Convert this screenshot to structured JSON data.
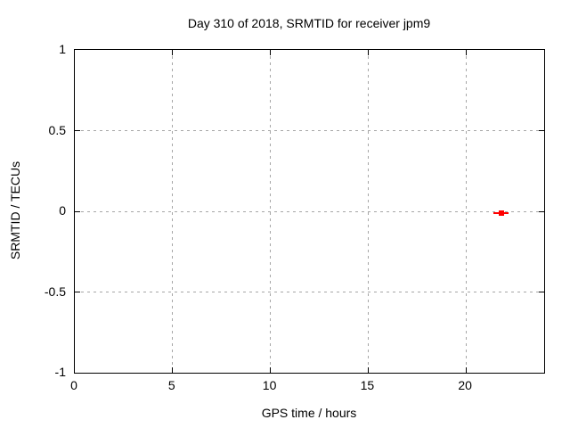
{
  "colors": {
    "background": "#ffffff",
    "border": "#000000",
    "grid": "#a6a6a6",
    "text": "#000000",
    "point": "#ff0000"
  },
  "chart_data": {
    "type": "scatter",
    "title": "Day 310 of 2018, SRMTID for receiver jpm9",
    "xlabel": "GPS time / hours",
    "ylabel": "SRMTID / TECUs",
    "xlim": [
      0,
      24
    ],
    "ylim": [
      -1,
      1
    ],
    "xticks": [
      {
        "value": 0,
        "label": "0"
      },
      {
        "value": 5,
        "label": "5"
      },
      {
        "value": 10,
        "label": "10"
      },
      {
        "value": 15,
        "label": "15"
      },
      {
        "value": 20,
        "label": "20"
      }
    ],
    "yticks": [
      {
        "value": -1,
        "label": "-1"
      },
      {
        "value": -0.5,
        "label": "-0.5"
      },
      {
        "value": 0,
        "label": "0"
      },
      {
        "value": 0.5,
        "label": "0.5"
      },
      {
        "value": 1,
        "label": "1"
      }
    ],
    "grid": "dotted, gray, at interior major ticks; mirrored inward tick marks on all four borders",
    "legend": "none",
    "series": [
      {
        "name": "SRMTID",
        "color": "#ff0000",
        "marker": "filled-square-with-horizontal-errorbar",
        "points": [
          {
            "x": 21.8,
            "y": -0.01,
            "xerr": 0.4
          }
        ]
      }
    ]
  }
}
